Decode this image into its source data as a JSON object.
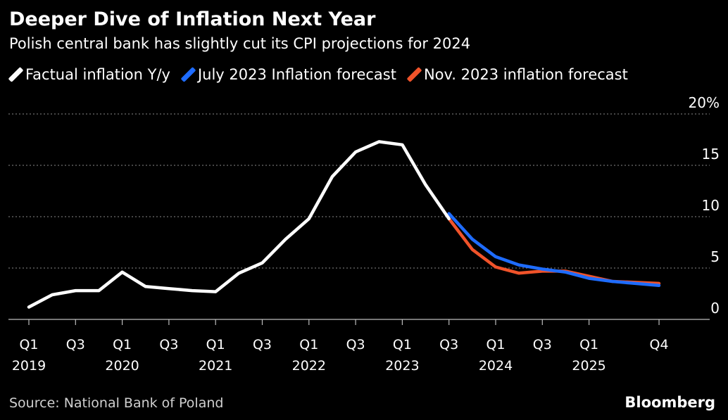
{
  "header": {
    "title": "Deeper Dive of Inflation Next Year",
    "subtitle": "Polish central bank has slightly cut its CPI projections for 2024"
  },
  "legend": [
    {
      "label": "Factual inflation Y/y",
      "color": "#ffffff"
    },
    {
      "label": "July 2023 Inflation forecast",
      "color": "#1e6cff"
    },
    {
      "label": "Nov. 2023 inflation forecast",
      "color": "#f0532a"
    }
  ],
  "footer": {
    "source": "Source: National Bank of Poland",
    "brand": "Bloomberg"
  },
  "chart_data": {
    "type": "line",
    "title": "Deeper Dive of Inflation Next Year",
    "subtitle": "Polish central bank has slightly cut its CPI projections for 2024",
    "xlabel": "",
    "ylabel": "",
    "ylim": [
      0,
      20
    ],
    "yticks": [
      "0",
      "5",
      "10",
      "15",
      "20%"
    ],
    "grid": true,
    "legend_position": "top",
    "x_tick_labels": [
      {
        "q": 0,
        "top": "Q1",
        "bottom": "2019"
      },
      {
        "q": 2,
        "top": "Q3",
        "bottom": ""
      },
      {
        "q": 4,
        "top": "Q1",
        "bottom": "2020"
      },
      {
        "q": 6,
        "top": "Q3",
        "bottom": ""
      },
      {
        "q": 8,
        "top": "Q1",
        "bottom": "2021"
      },
      {
        "q": 10,
        "top": "Q3",
        "bottom": ""
      },
      {
        "q": 12,
        "top": "Q1",
        "bottom": "2022"
      },
      {
        "q": 14,
        "top": "Q3",
        "bottom": ""
      },
      {
        "q": 16,
        "top": "Q1",
        "bottom": "2023"
      },
      {
        "q": 18,
        "top": "Q3",
        "bottom": ""
      },
      {
        "q": 20,
        "top": "Q1",
        "bottom": "2024"
      },
      {
        "q": 22,
        "top": "Q3",
        "bottom": ""
      },
      {
        "q": 24,
        "top": "Q1",
        "bottom": "2025"
      },
      {
        "q": 27,
        "top": "Q4",
        "bottom": ""
      }
    ],
    "series": [
      {
        "name": "Factual inflation Y/y",
        "color": "#ffffff",
        "x": [
          "2019-Q1",
          "2019-Q2",
          "2019-Q3",
          "2019-Q4",
          "2020-Q1",
          "2020-Q2",
          "2020-Q3",
          "2020-Q4",
          "2021-Q1",
          "2021-Q2",
          "2021-Q3",
          "2021-Q4",
          "2022-Q1",
          "2022-Q2",
          "2022-Q3",
          "2022-Q4",
          "2023-Q1",
          "2023-Q2",
          "2023-Q3"
        ],
        "values": [
          1.2,
          2.4,
          2.8,
          2.8,
          4.6,
          3.2,
          3.0,
          2.8,
          2.7,
          4.5,
          5.5,
          7.8,
          9.8,
          13.9,
          16.3,
          17.3,
          17.0,
          13.1,
          9.8
        ]
      },
      {
        "name": "July 2023 Inflation forecast",
        "color": "#1e6cff",
        "x": [
          "2023-Q3",
          "2023-Q4",
          "2024-Q1",
          "2024-Q2",
          "2024-Q3",
          "2024-Q4",
          "2025-Q1",
          "2025-Q2",
          "2025-Q3",
          "2025-Q4"
        ],
        "values": [
          10.3,
          7.8,
          6.1,
          5.3,
          4.9,
          4.6,
          4.0,
          3.7,
          3.5,
          3.3
        ]
      },
      {
        "name": "Nov. 2023 inflation forecast",
        "color": "#f0532a",
        "x": [
          "2023-Q3",
          "2023-Q4",
          "2024-Q1",
          "2024-Q2",
          "2024-Q3",
          "2024-Q4",
          "2025-Q1",
          "2025-Q2",
          "2025-Q3",
          "2025-Q4"
        ],
        "values": [
          9.8,
          6.8,
          5.1,
          4.5,
          4.7,
          4.7,
          4.2,
          3.7,
          3.6,
          3.5
        ]
      }
    ]
  }
}
